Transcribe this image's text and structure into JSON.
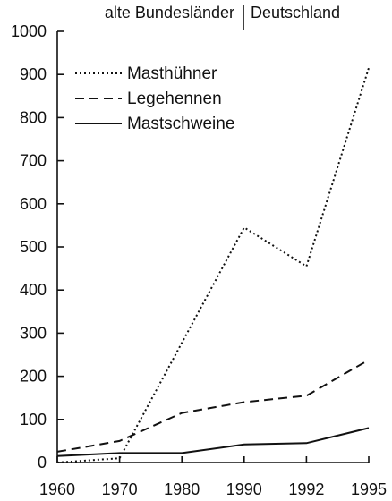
{
  "header": {
    "left_label": "alte Bundesländer",
    "right_label": "Deutschland"
  },
  "chart_data": {
    "type": "line",
    "x": [
      "1960",
      "1970",
      "1980",
      "1990",
      "1992",
      "1995"
    ],
    "ylim": [
      0,
      1000
    ],
    "y_ticks": [
      0,
      100,
      200,
      300,
      400,
      500,
      600,
      700,
      800,
      900,
      1000
    ],
    "grid": false,
    "legend_position": "top-left",
    "series": [
      {
        "name": "Masthühner",
        "style": "dotted",
        "values": [
          0,
          10,
          null,
          545,
          455,
          915
        ]
      },
      {
        "name": "Legehennen",
        "style": "dashed",
        "values": [
          25,
          50,
          115,
          140,
          155,
          238
        ]
      },
      {
        "name": "Mastschweine",
        "style": "solid",
        "values": [
          15,
          22,
          22,
          42,
          45,
          80
        ]
      }
    ]
  }
}
